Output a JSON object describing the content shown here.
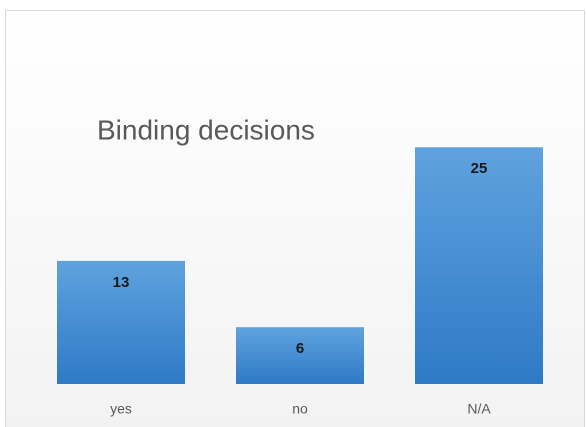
{
  "chart_data": {
    "type": "bar",
    "title": "Binding decisions",
    "categories": [
      "yes",
      "no",
      "N/A"
    ],
    "values": [
      13,
      6,
      25
    ],
    "color": "#4a8fd4"
  }
}
